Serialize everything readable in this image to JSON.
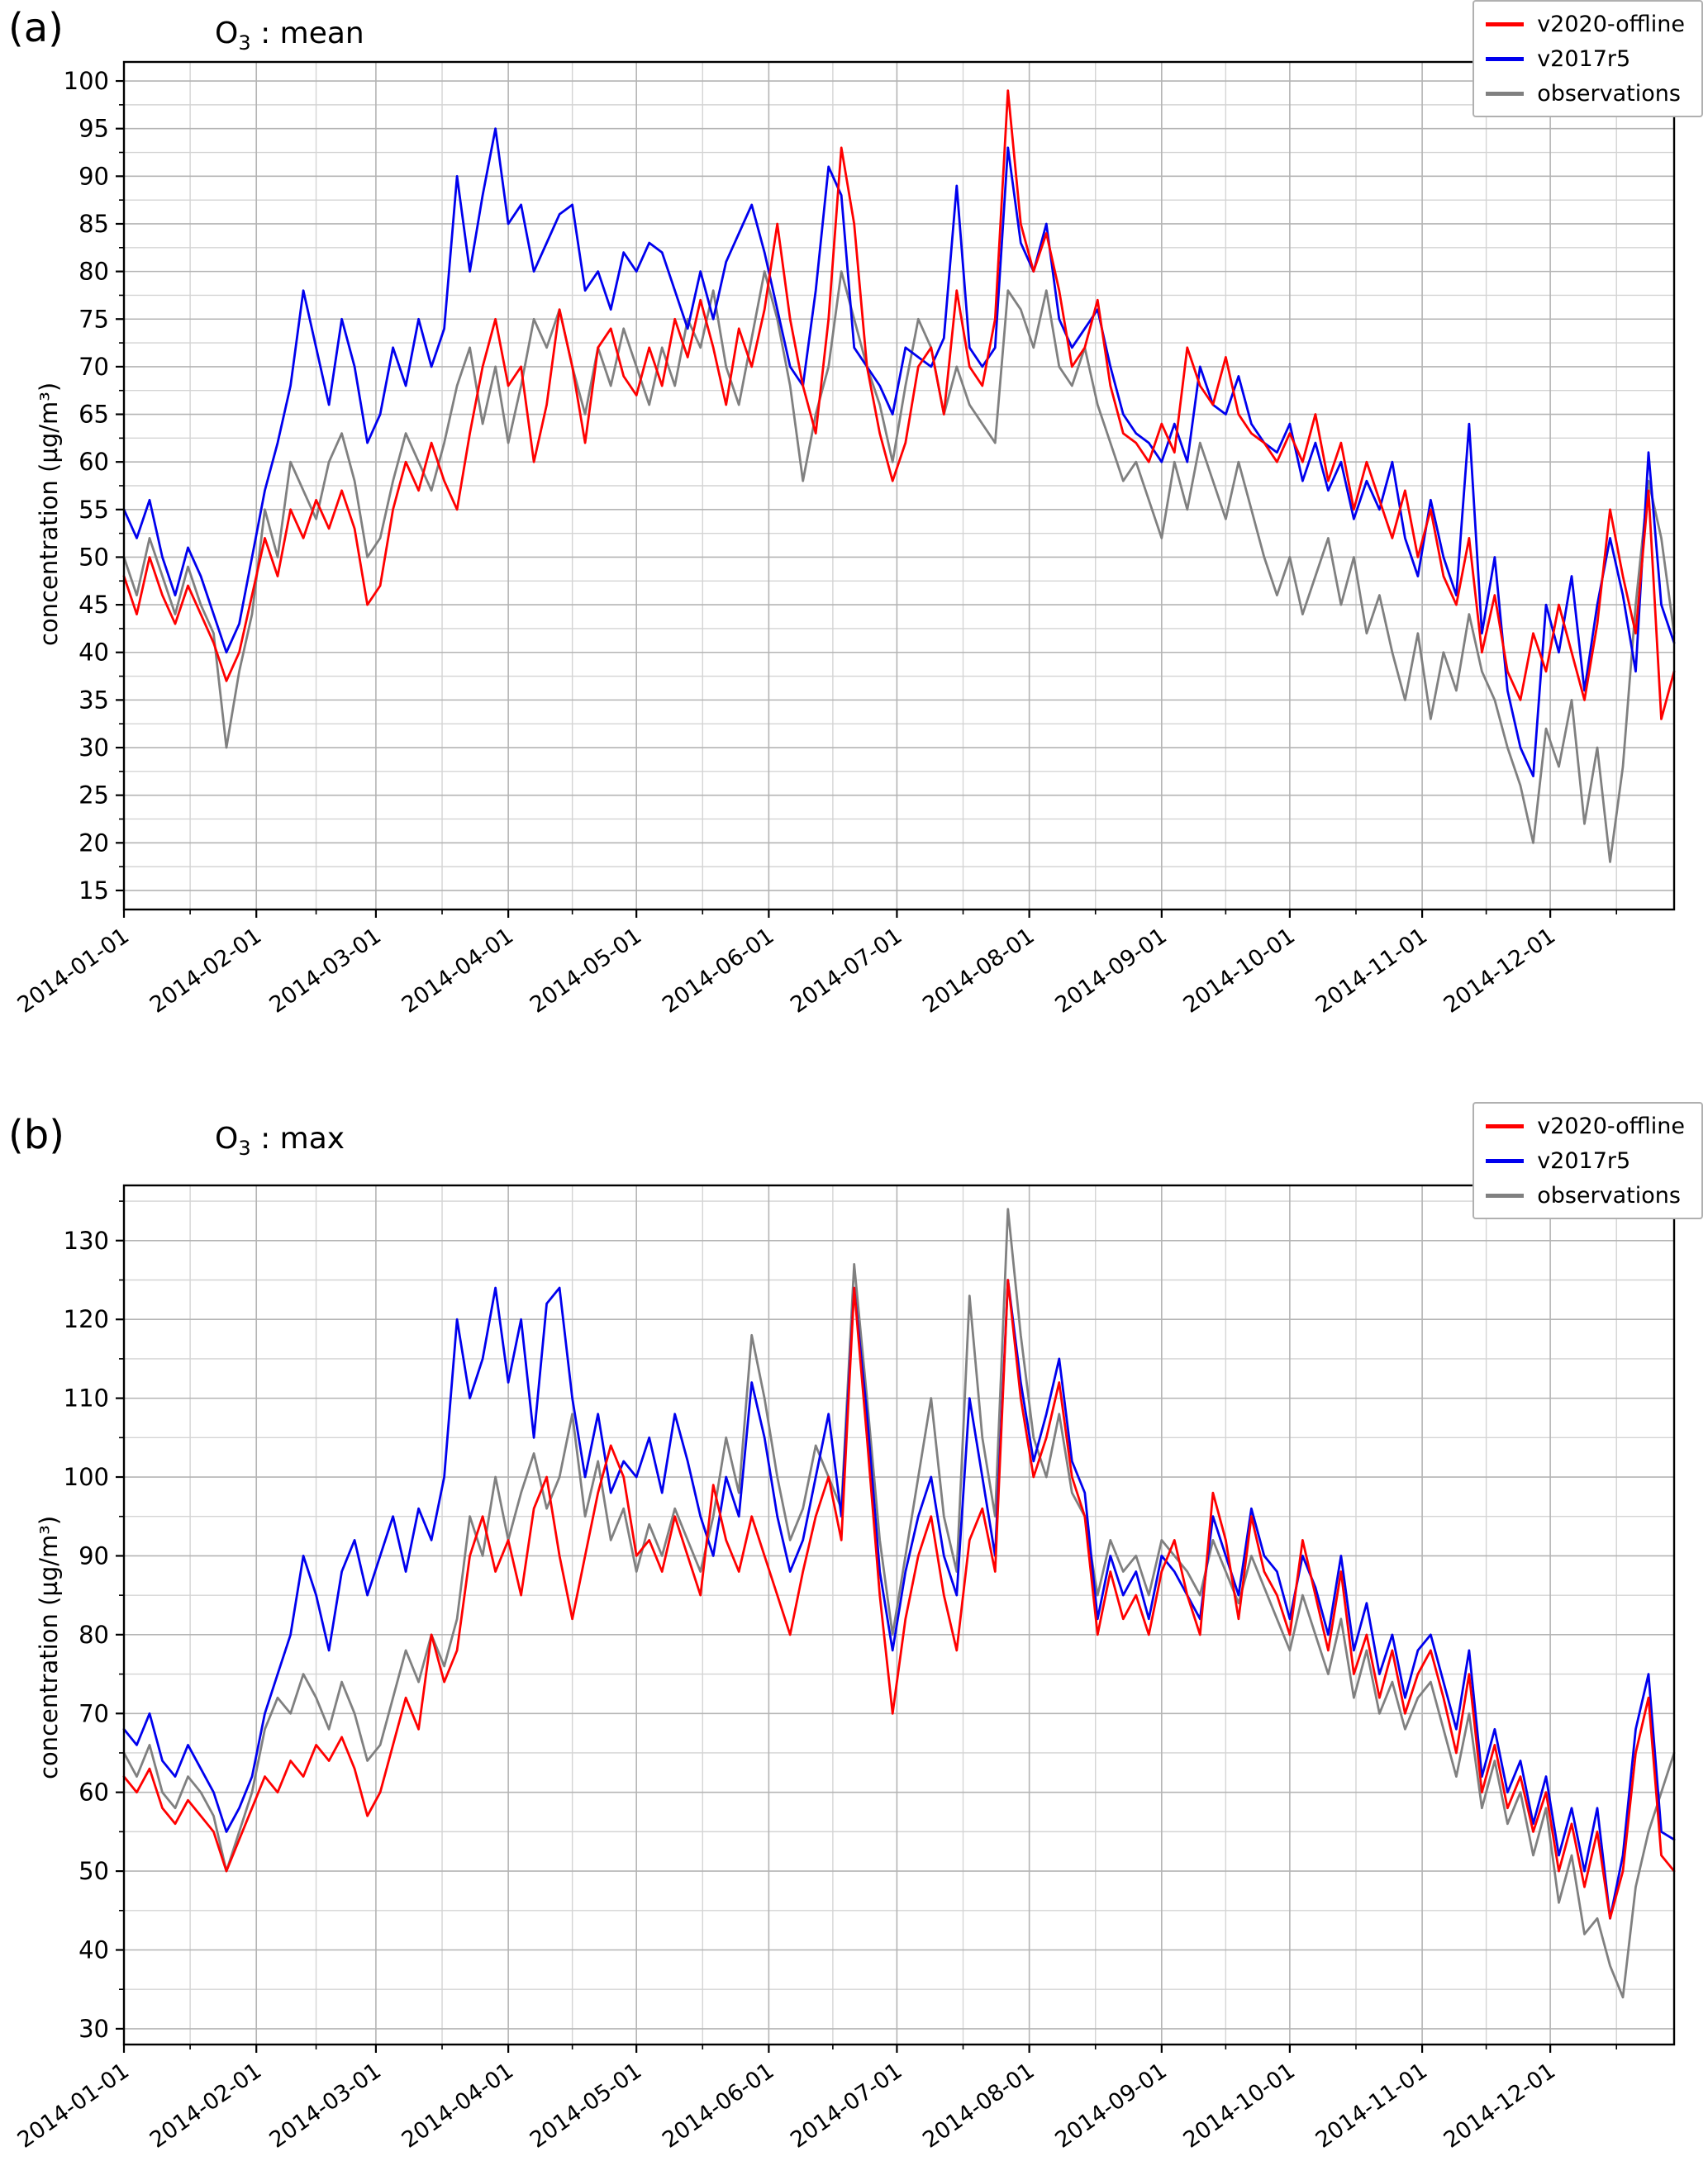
{
  "chart_data": [
    {
      "type": "line",
      "panel_label": "(a)",
      "title": "O3 : mean",
      "title_parts": {
        "base": "O",
        "sub": "3",
        "rest": " : mean"
      },
      "ylabel": "concentration (µg/m³)",
      "legend_position": "upper right outside",
      "grid": true,
      "xlim": [
        1,
        364
      ],
      "ylim": [
        13,
        102
      ],
      "yticks": [
        15,
        20,
        25,
        30,
        35,
        40,
        45,
        50,
        55,
        60,
        65,
        70,
        75,
        80,
        85,
        90,
        95,
        100
      ],
      "x_tick_days": [
        1,
        32,
        60,
        91,
        121,
        152,
        182,
        213,
        244,
        274,
        305,
        335
      ],
      "x_tick_labels": [
        "2014-01-01",
        "2014-02-01",
        "2014-03-01",
        "2014-04-01",
        "2014-05-01",
        "2014-06-01",
        "2014-07-01",
        "2014-08-01",
        "2014-09-01",
        "2014-10-01",
        "2014-11-01",
        "2014-12-01"
      ],
      "x": [
        1,
        4,
        7,
        10,
        13,
        16,
        19,
        22,
        25,
        28,
        31,
        34,
        37,
        40,
        43,
        46,
        49,
        52,
        55,
        58,
        61,
        64,
        67,
        70,
        73,
        76,
        79,
        82,
        85,
        88,
        91,
        94,
        97,
        100,
        103,
        106,
        109,
        112,
        115,
        118,
        121,
        124,
        127,
        130,
        133,
        136,
        139,
        142,
        145,
        148,
        151,
        154,
        157,
        160,
        163,
        166,
        169,
        172,
        175,
        178,
        181,
        184,
        187,
        190,
        193,
        196,
        199,
        202,
        205,
        208,
        211,
        214,
        217,
        220,
        223,
        226,
        229,
        232,
        235,
        238,
        241,
        244,
        247,
        250,
        253,
        256,
        259,
        262,
        265,
        268,
        271,
        274,
        277,
        280,
        283,
        286,
        289,
        292,
        295,
        298,
        301,
        304,
        307,
        310,
        313,
        316,
        319,
        322,
        325,
        328,
        331,
        334,
        337,
        340,
        343,
        346,
        349,
        352,
        355,
        358,
        361,
        364
      ],
      "series": [
        {
          "name": "v2020-offline",
          "color": "#ff0000",
          "values": [
            48,
            44,
            50,
            46,
            43,
            47,
            44,
            41,
            37,
            40,
            46,
            52,
            48,
            55,
            52,
            56,
            53,
            57,
            53,
            45,
            47,
            55,
            60,
            57,
            62,
            58,
            55,
            63,
            70,
            75,
            68,
            70,
            60,
            66,
            76,
            70,
            62,
            72,
            74,
            69,
            67,
            72,
            68,
            75,
            71,
            77,
            72,
            66,
            74,
            70,
            76,
            85,
            75,
            68,
            63,
            75,
            93,
            85,
            70,
            63,
            58,
            62,
            70,
            72,
            65,
            78,
            70,
            68,
            75,
            99,
            85,
            80,
            84,
            78,
            70,
            72,
            77,
            68,
            63,
            62,
            60,
            64,
            61,
            72,
            68,
            66,
            71,
            65,
            63,
            62,
            60,
            63,
            60,
            65,
            58,
            62,
            55,
            60,
            56,
            52,
            57,
            50,
            55,
            48,
            45,
            52,
            40,
            46,
            38,
            35,
            42,
            38,
            45,
            40,
            35,
            43,
            55,
            48,
            42,
            57,
            33,
            38
          ]
        },
        {
          "name": "v2017r5",
          "color": "#0000ee",
          "values": [
            55,
            52,
            56,
            50,
            46,
            51,
            48,
            44,
            40,
            43,
            50,
            57,
            62,
            68,
            78,
            72,
            66,
            75,
            70,
            62,
            65,
            72,
            68,
            75,
            70,
            74,
            90,
            80,
            88,
            95,
            85,
            87,
            80,
            83,
            86,
            87,
            78,
            80,
            76,
            82,
            80,
            83,
            82,
            78,
            74,
            80,
            75,
            81,
            84,
            87,
            82,
            76,
            70,
            68,
            78,
            91,
            88,
            72,
            70,
            68,
            65,
            72,
            71,
            70,
            73,
            89,
            72,
            70,
            72,
            93,
            83,
            80,
            85,
            75,
            72,
            74,
            76,
            70,
            65,
            63,
            62,
            60,
            64,
            60,
            70,
            66,
            65,
            69,
            64,
            62,
            61,
            64,
            58,
            62,
            57,
            60,
            54,
            58,
            55,
            60,
            52,
            48,
            56,
            50,
            46,
            64,
            42,
            50,
            36,
            30,
            27,
            45,
            40,
            48,
            36,
            45,
            52,
            46,
            38,
            61,
            45,
            41
          ]
        },
        {
          "name": "observations",
          "color": "#808080",
          "values": [
            50,
            46,
            52,
            48,
            44,
            49,
            45,
            42,
            30,
            38,
            44,
            55,
            50,
            60,
            57,
            54,
            60,
            63,
            58,
            50,
            52,
            58,
            63,
            60,
            57,
            62,
            68,
            72,
            64,
            70,
            62,
            68,
            75,
            72,
            76,
            70,
            65,
            72,
            68,
            74,
            70,
            66,
            72,
            68,
            75,
            72,
            78,
            70,
            66,
            73,
            80,
            75,
            68,
            58,
            65,
            70,
            80,
            75,
            70,
            66,
            60,
            68,
            75,
            72,
            65,
            70,
            66,
            64,
            62,
            78,
            76,
            72,
            78,
            70,
            68,
            72,
            66,
            62,
            58,
            60,
            56,
            52,
            60,
            55,
            62,
            58,
            54,
            60,
            55,
            50,
            46,
            50,
            44,
            48,
            52,
            45,
            50,
            42,
            46,
            40,
            35,
            42,
            33,
            40,
            36,
            44,
            38,
            35,
            30,
            26,
            20,
            32,
            28,
            35,
            22,
            30,
            18,
            28,
            45,
            58,
            52,
            42
          ]
        }
      ]
    },
    {
      "type": "line",
      "panel_label": "(b)",
      "title": "O3 : max",
      "title_parts": {
        "base": "O",
        "sub": "3",
        "rest": " : max"
      },
      "ylabel": "concentration (µg/m³)",
      "legend_position": "upper right outside",
      "grid": true,
      "xlim": [
        1,
        364
      ],
      "ylim": [
        28,
        137
      ],
      "yticks": [
        30,
        40,
        50,
        60,
        70,
        80,
        90,
        100,
        110,
        120,
        130
      ],
      "x_tick_days": [
        1,
        32,
        60,
        91,
        121,
        152,
        182,
        213,
        244,
        274,
        305,
        335
      ],
      "x_tick_labels": [
        "2014-01-01",
        "2014-02-01",
        "2014-03-01",
        "2014-04-01",
        "2014-05-01",
        "2014-06-01",
        "2014-07-01",
        "2014-08-01",
        "2014-09-01",
        "2014-10-01",
        "2014-11-01",
        "2014-12-01"
      ],
      "x": [
        1,
        4,
        7,
        10,
        13,
        16,
        19,
        22,
        25,
        28,
        31,
        34,
        37,
        40,
        43,
        46,
        49,
        52,
        55,
        58,
        61,
        64,
        67,
        70,
        73,
        76,
        79,
        82,
        85,
        88,
        91,
        94,
        97,
        100,
        103,
        106,
        109,
        112,
        115,
        118,
        121,
        124,
        127,
        130,
        133,
        136,
        139,
        142,
        145,
        148,
        151,
        154,
        157,
        160,
        163,
        166,
        169,
        172,
        175,
        178,
        181,
        184,
        187,
        190,
        193,
        196,
        199,
        202,
        205,
        208,
        211,
        214,
        217,
        220,
        223,
        226,
        229,
        232,
        235,
        238,
        241,
        244,
        247,
        250,
        253,
        256,
        259,
        262,
        265,
        268,
        271,
        274,
        277,
        280,
        283,
        286,
        289,
        292,
        295,
        298,
        301,
        304,
        307,
        310,
        313,
        316,
        319,
        322,
        325,
        328,
        331,
        334,
        337,
        340,
        343,
        346,
        349,
        352,
        355,
        358,
        361,
        364
      ],
      "series": [
        {
          "name": "v2020-offline",
          "color": "#ff0000",
          "values": [
            62,
            60,
            63,
            58,
            56,
            59,
            57,
            55,
            50,
            54,
            58,
            62,
            60,
            64,
            62,
            66,
            64,
            67,
            63,
            57,
            60,
            66,
            72,
            68,
            80,
            74,
            78,
            90,
            95,
            88,
            92,
            85,
            96,
            100,
            90,
            82,
            90,
            98,
            104,
            100,
            90,
            92,
            88,
            95,
            90,
            85,
            99,
            92,
            88,
            95,
            90,
            85,
            80,
            88,
            95,
            100,
            92,
            124,
            105,
            85,
            70,
            82,
            90,
            95,
            85,
            78,
            92,
            96,
            88,
            125,
            110,
            100,
            105,
            112,
            100,
            95,
            80,
            88,
            82,
            85,
            80,
            88,
            92,
            85,
            80,
            98,
            92,
            82,
            95,
            88,
            85,
            80,
            92,
            85,
            78,
            88,
            75,
            80,
            72,
            78,
            70,
            75,
            78,
            72,
            65,
            75,
            60,
            66,
            58,
            62,
            55,
            60,
            50,
            56,
            48,
            55,
            44,
            50,
            65,
            72,
            52,
            50
          ]
        },
        {
          "name": "v2017r5",
          "color": "#0000ee",
          "values": [
            68,
            66,
            70,
            64,
            62,
            66,
            63,
            60,
            55,
            58,
            62,
            70,
            75,
            80,
            90,
            85,
            78,
            88,
            92,
            85,
            90,
            95,
            88,
            96,
            92,
            100,
            120,
            110,
            115,
            124,
            112,
            120,
            105,
            122,
            124,
            110,
            100,
            108,
            98,
            102,
            100,
            105,
            98,
            108,
            102,
            95,
            90,
            100,
            95,
            112,
            105,
            95,
            88,
            92,
            100,
            108,
            95,
            124,
            108,
            88,
            78,
            88,
            95,
            100,
            90,
            85,
            110,
            100,
            90,
            125,
            112,
            102,
            108,
            115,
            102,
            98,
            82,
            90,
            85,
            88,
            82,
            90,
            88,
            85,
            82,
            95,
            90,
            85,
            96,
            90,
            88,
            82,
            90,
            86,
            80,
            90,
            78,
            84,
            75,
            80,
            72,
            78,
            80,
            74,
            68,
            78,
            62,
            68,
            60,
            64,
            56,
            62,
            52,
            58,
            50,
            58,
            44,
            52,
            68,
            75,
            55,
            54
          ]
        },
        {
          "name": "observations",
          "color": "#808080",
          "values": [
            65,
            62,
            66,
            60,
            58,
            62,
            60,
            57,
            50,
            55,
            60,
            68,
            72,
            70,
            75,
            72,
            68,
            74,
            70,
            64,
            66,
            72,
            78,
            74,
            80,
            76,
            82,
            95,
            90,
            100,
            92,
            98,
            103,
            96,
            100,
            108,
            95,
            102,
            92,
            96,
            88,
            94,
            90,
            96,
            92,
            88,
            95,
            105,
            98,
            118,
            110,
            100,
            92,
            96,
            104,
            100,
            96,
            127,
            110,
            92,
            80,
            90,
            100,
            110,
            95,
            88,
            123,
            105,
            95,
            134,
            118,
            105,
            100,
            108,
            98,
            95,
            85,
            92,
            88,
            90,
            85,
            92,
            90,
            88,
            85,
            92,
            88,
            84,
            90,
            86,
            82,
            78,
            85,
            80,
            75,
            82,
            72,
            78,
            70,
            74,
            68,
            72,
            74,
            68,
            62,
            70,
            58,
            64,
            56,
            60,
            52,
            58,
            46,
            52,
            42,
            44,
            38,
            34,
            48,
            55,
            60,
            65
          ]
        }
      ]
    }
  ]
}
